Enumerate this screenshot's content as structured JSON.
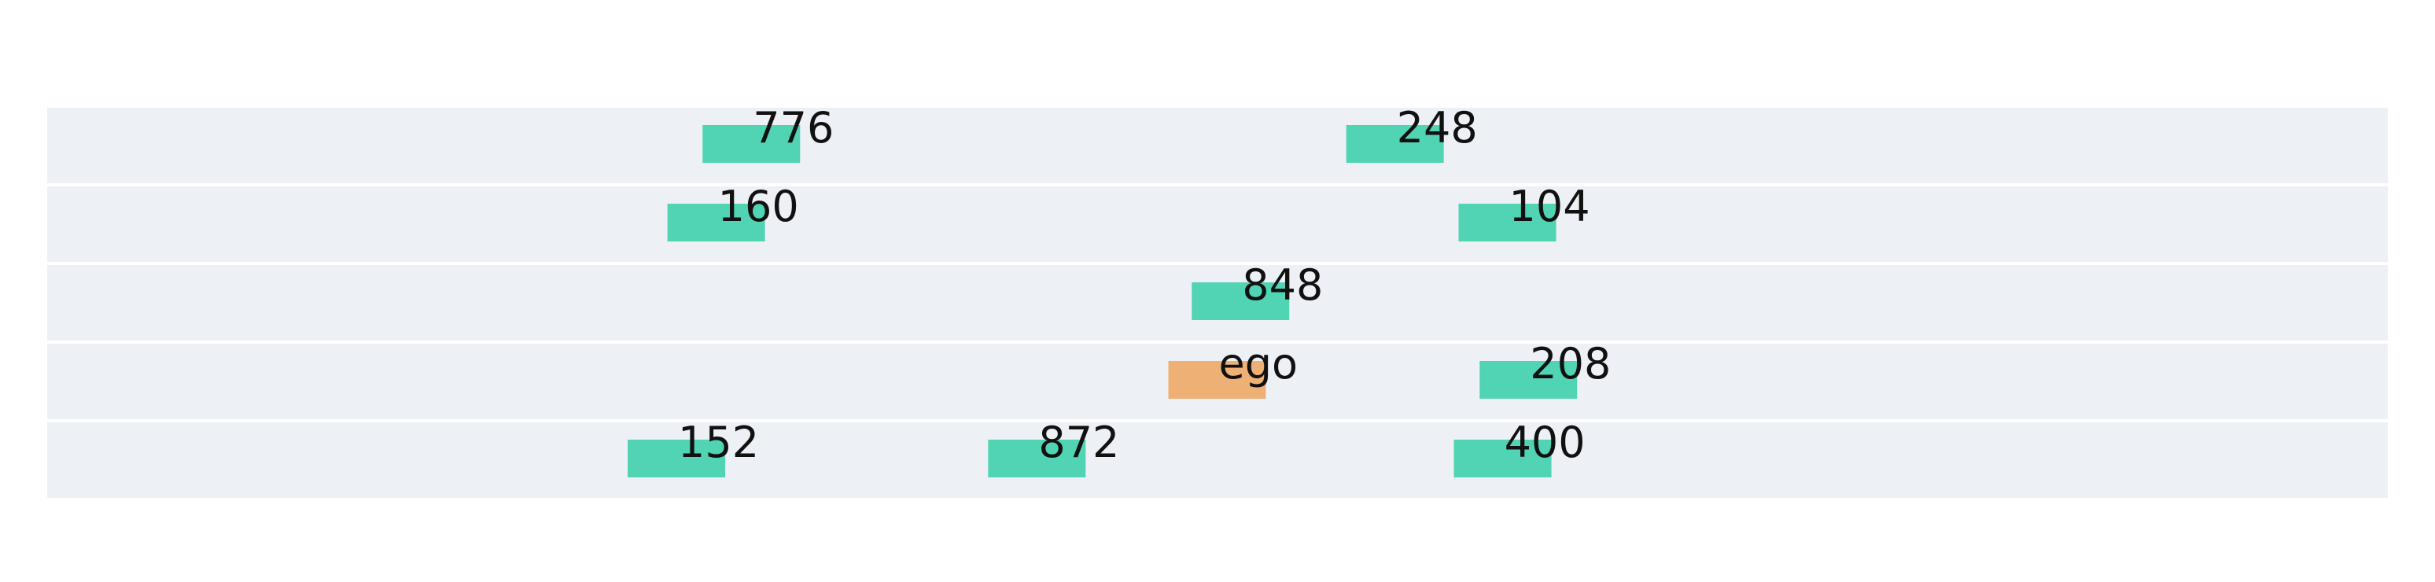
{
  "colors": {
    "lane_background": "#edf0f5",
    "lane_separator": "#ffffff",
    "vehicle": "#50d4b4",
    "ego": "#eeb074",
    "label": "#111111"
  },
  "lanes": [
    {
      "vehicles": [
        {
          "label": "776",
          "x": 0.28
        },
        {
          "label": "248",
          "x": 0.555
        }
      ]
    },
    {
      "vehicles": [
        {
          "label": "160",
          "x": 0.265
        },
        {
          "label": "104",
          "x": 0.603
        }
      ]
    },
    {
      "vehicles": [
        {
          "label": "848",
          "x": 0.489
        }
      ]
    },
    {
      "vehicles": [
        {
          "label": "ego",
          "x": 0.479,
          "ego": true
        },
        {
          "label": "208",
          "x": 0.612
        }
      ]
    },
    {
      "vehicles": [
        {
          "label": "152",
          "x": 0.248
        },
        {
          "label": "872",
          "x": 0.402
        },
        {
          "label": "400",
          "x": 0.601
        }
      ]
    }
  ]
}
